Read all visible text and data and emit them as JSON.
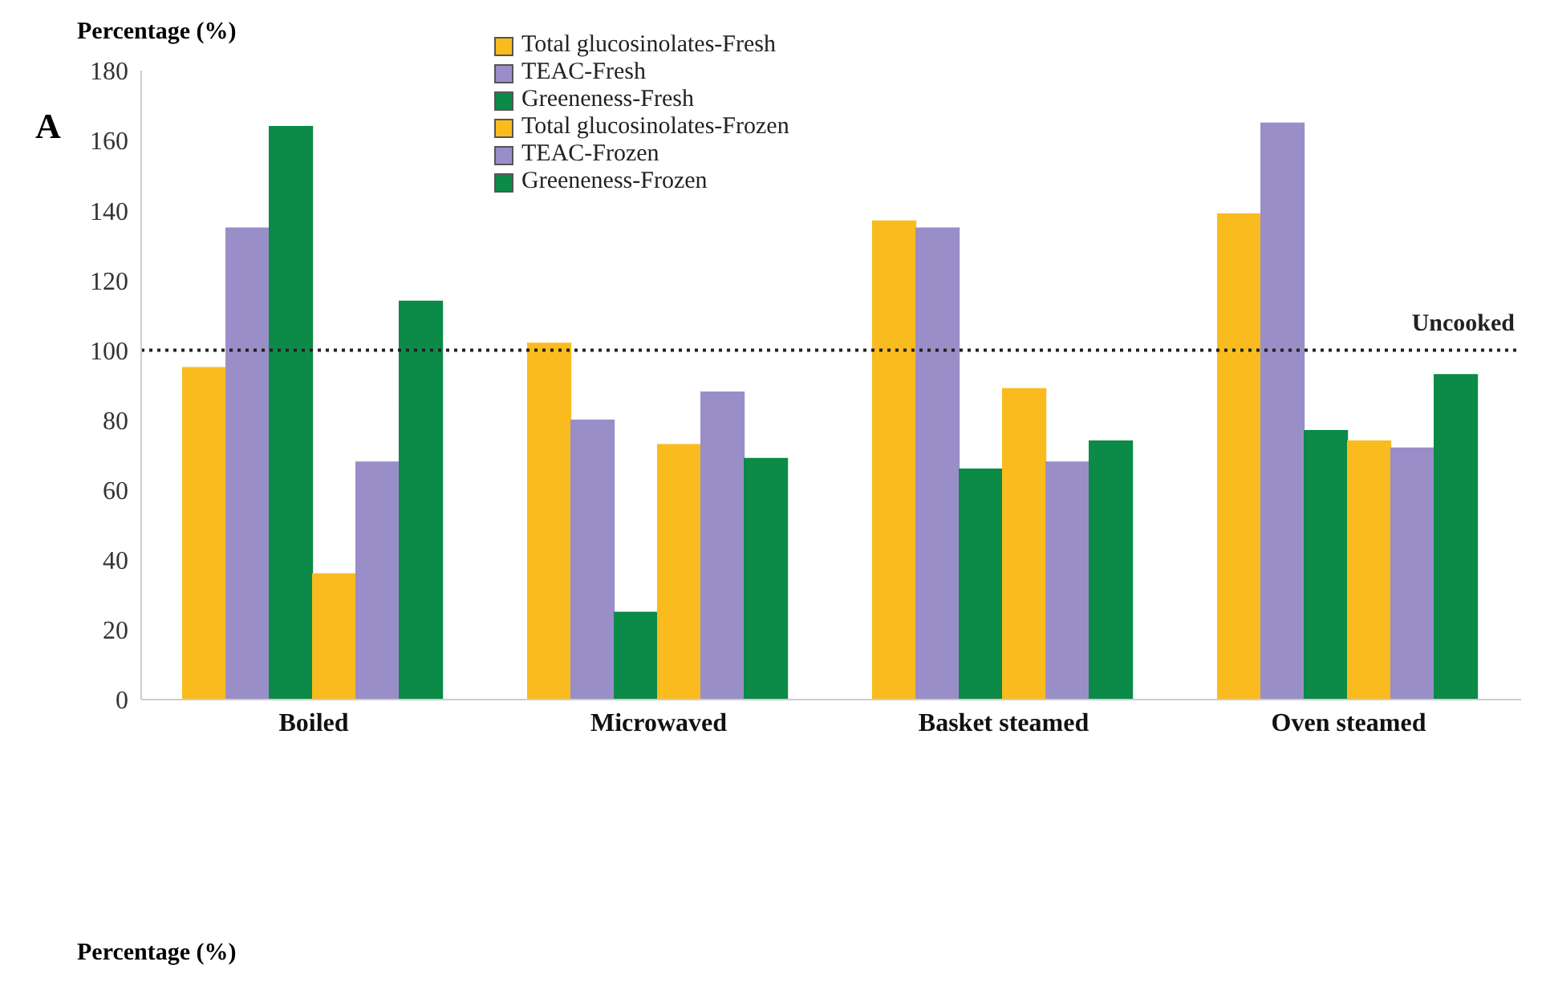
{
  "chart_data": {
    "type": "bar",
    "categories": [
      "Boiled",
      "Microwaved",
      "Basket steamed",
      "Oven steamed"
    ],
    "series": [
      {
        "name": "Total glucosinolates-Fresh",
        "color": "#f9bb1e",
        "values": [
          95,
          102,
          137,
          139
        ]
      },
      {
        "name": "TEAC-Fresh",
        "color": "#9a8ec8",
        "values": [
          135,
          80,
          135,
          165
        ]
      },
      {
        "name": "Greeneness-Fresh",
        "color": "#0b8a48",
        "values": [
          164,
          25,
          66,
          77
        ]
      },
      {
        "name": "Total glucosinolates-Frozen",
        "color": "#f9bb1e",
        "values": [
          36,
          73,
          89,
          74
        ]
      },
      {
        "name": "TEAC-Frozen",
        "color": "#9a8ec8",
        "values": [
          68,
          88,
          68,
          72
        ]
      },
      {
        "name": "Greeneness-Frozen",
        "color": "#0b8a48",
        "values": [
          114,
          69,
          74,
          93
        ]
      }
    ],
    "ylim": [
      0,
      180
    ],
    "yticks": [
      0,
      20,
      40,
      60,
      80,
      100,
      120,
      140,
      160,
      180
    ],
    "ref_lines": [
      {
        "axis": "y",
        "value": 100,
        "label": "Uncooked",
        "line_style": "dotted",
        "color": "#222222"
      }
    ],
    "annotations": [
      "Percentage (%)",
      "A",
      "Percentage (%)"
    ],
    "grid": false,
    "legend": "top"
  }
}
